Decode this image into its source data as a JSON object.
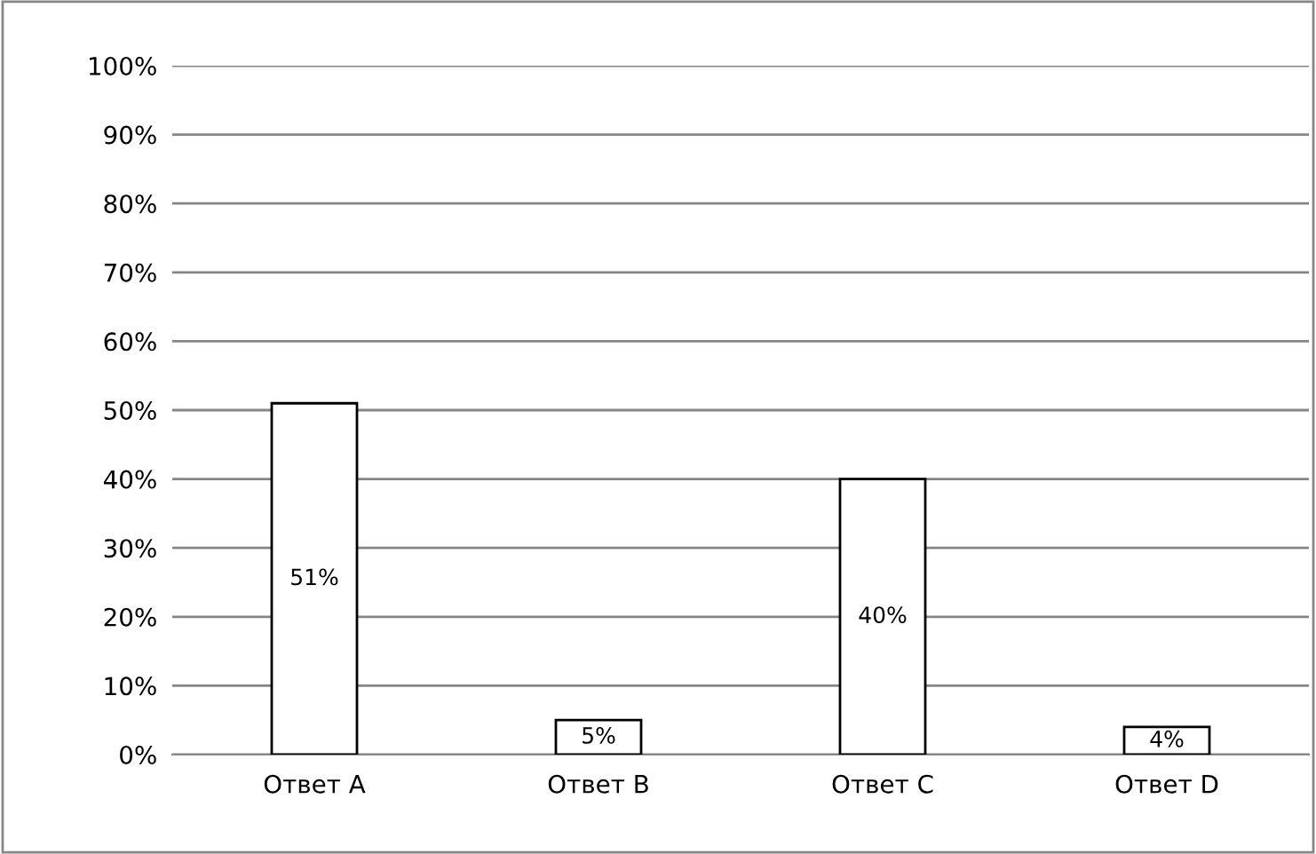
{
  "chart_data": {
    "type": "bar",
    "categories": [
      "Ответ A",
      "Ответ B",
      "Ответ C",
      "Ответ D"
    ],
    "values": [
      51,
      5,
      40,
      4
    ],
    "value_labels": [
      "51%",
      "5%",
      "40%",
      "4%"
    ],
    "colors": [
      "#ffffff",
      "#ffffff",
      "#ffffff",
      "#ffffff"
    ],
    "ylim": [
      0,
      100
    ],
    "yticks": [
      {
        "value": 0,
        "label": "0%"
      },
      {
        "value": 10,
        "label": "10%"
      },
      {
        "value": 20,
        "label": "20%"
      },
      {
        "value": 30,
        "label": "30%"
      },
      {
        "value": 40,
        "label": "40%"
      },
      {
        "value": 50,
        "label": "50%"
      },
      {
        "value": 60,
        "label": "60%"
      },
      {
        "value": 70,
        "label": "70%"
      },
      {
        "value": 80,
        "label": "80%"
      },
      {
        "value": 90,
        "label": "90%"
      },
      {
        "value": 100,
        "label": "100%"
      }
    ],
    "grid": "y",
    "legend": false
  }
}
